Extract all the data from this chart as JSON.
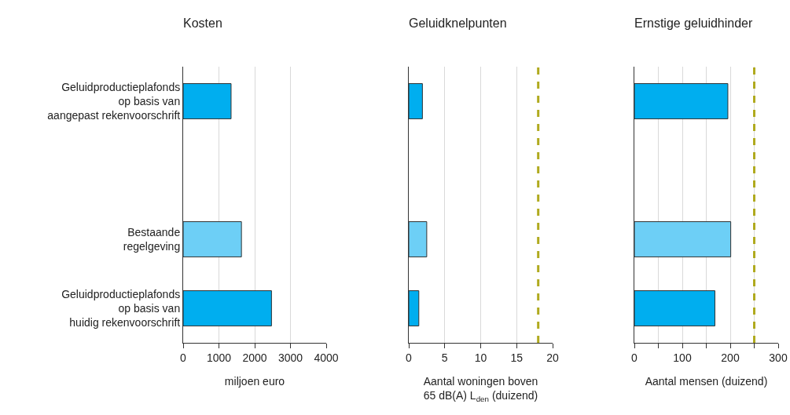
{
  "chart_data": [
    {
      "type": "bar",
      "orientation": "horizontal",
      "title": "Kosten",
      "xlabel": "miljoen euro",
      "categories": [
        "Geluidproductieplafonds\nop basis van\naangepast rekenvoorschrift",
        null,
        "Bestaande\nregelgeving",
        "Geluidproductieplafonds\nop basis van\nhuidig rekenvoorschrift"
      ],
      "values": [
        1340,
        null,
        1630,
        2470
      ],
      "colors": [
        "#00aeef",
        "#00aeef",
        "#6dcff6",
        "#00aeef"
      ],
      "xlim": [
        0,
        4000
      ],
      "xticks": [
        0,
        1000,
        2000,
        3000,
        4000
      ],
      "grid": "x"
    },
    {
      "type": "bar",
      "orientation": "horizontal",
      "title": "Geluidknelpunten",
      "xlabel": "Aantal woningen boven\n65 dB(A) L$_{den}$ (duizend)",
      "categories": [
        null,
        null,
        null,
        null
      ],
      "values": [
        1.9,
        null,
        2.5,
        1.4
      ],
      "colors": [
        "#00aeef",
        "#00aeef",
        "#6dcff6",
        "#00aeef"
      ],
      "xlim": [
        0,
        20
      ],
      "xticks": [
        0,
        5,
        10,
        15,
        20
      ],
      "grid": "x",
      "ref_lines": [
        {
          "axis": "x",
          "value": 18,
          "color": "#b0aa1e",
          "line_style": "dashed"
        }
      ]
    },
    {
      "type": "bar",
      "orientation": "horizontal",
      "title": "Ernstige geluidhinder",
      "xlabel": "Aantal mensen (duizend)",
      "categories": [
        null,
        null,
        null,
        null
      ],
      "values": [
        195,
        null,
        201,
        168
      ],
      "colors": [
        "#00aeef",
        "#00aeef",
        "#6dcff6",
        "#00aeef"
      ],
      "xlim": [
        0,
        300
      ],
      "xticks": [
        0,
        {
          "value": 50,
          "label": null
        },
        100,
        {
          "value": 150,
          "label": null
        },
        200,
        {
          "value": 250,
          "label": null
        },
        300
      ],
      "grid": "x",
      "ref_lines": [
        {
          "axis": "x",
          "value": 250,
          "color": "#b0aa1e",
          "line_style": "dashed"
        }
      ]
    }
  ]
}
